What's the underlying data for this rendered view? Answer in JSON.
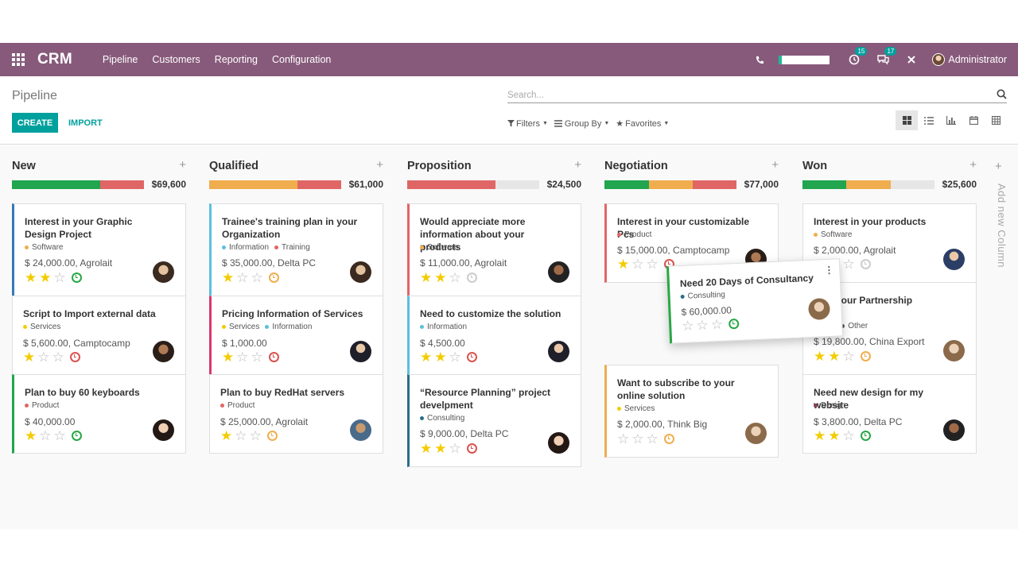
{
  "navbar": {
    "brand": "CRM",
    "menu": [
      "Pipeline",
      "Customers",
      "Reporting",
      "Configuration"
    ],
    "badge_activities": "15",
    "badge_messages": "17",
    "user_name": "Administrator"
  },
  "control_panel": {
    "breadcrumb": "Pipeline",
    "create_label": "CREATE",
    "import_label": "IMPORT",
    "search_placeholder": "Search...",
    "filters_label": "Filters",
    "group_by_label": "Group By",
    "favorites_label": "Favorites"
  },
  "colors": {
    "brand": "#875a7b",
    "accent": "#00a09d",
    "green": "#21a54f",
    "red": "#e06666",
    "orange": "#f0ad4e",
    "blue": "#5bc0de"
  },
  "columns": [
    {
      "title": "New",
      "total": "$69,600",
      "progress": {
        "green": 0.67,
        "orange": 0,
        "red": 0.33
      }
    },
    {
      "title": "Qualified",
      "total": "$61,000",
      "progress": {
        "green": 0,
        "orange": 0.67,
        "red": 0.33
      }
    },
    {
      "title": "Proposition",
      "total": "$24,500",
      "progress": {
        "green": 0,
        "orange": 0,
        "red": 0.67
      }
    },
    {
      "title": "Negotiation",
      "total": "$77,000",
      "progress": {
        "green": 0.34,
        "orange": 0.33,
        "red": 0.33
      }
    },
    {
      "title": "Won",
      "total": "$25,600",
      "progress": {
        "green": 0.33,
        "orange": 0.34,
        "red": 0
      }
    }
  ],
  "cards": {
    "new": [
      {
        "title": "Interest in your Graphic Design Project",
        "tags": [
          "Software"
        ],
        "amount": "$ 24,000.00, Agrolait",
        "stars": 2,
        "activity": "green"
      },
      {
        "title": "Script to Import external data",
        "tags": [
          "Services"
        ],
        "amount": "$ 5,600.00, Camptocamp",
        "stars": 1,
        "activity": "red"
      },
      {
        "title": "Plan to buy 60 keyboards",
        "tags": [
          "Product"
        ],
        "amount": "$ 40,000.00",
        "stars": 1,
        "activity": "green"
      }
    ],
    "qualified": [
      {
        "title": "Trainee's training plan in your Organization",
        "tags": [
          "Information",
          "Training"
        ],
        "amount": "$ 35,000.00, Delta PC",
        "stars": 1,
        "activity": "orange"
      },
      {
        "title": "Pricing Information of Services",
        "tags": [
          "Services",
          "Information"
        ],
        "amount": "$ 1,000.00",
        "stars": 1,
        "activity": "red"
      },
      {
        "title": "Plan to buy RedHat servers",
        "tags": [
          "Product"
        ],
        "amount": "$ 25,000.00, Agrolait",
        "stars": 1,
        "activity": "orange"
      }
    ],
    "proposition": [
      {
        "title": "Would appreciate more information about your products",
        "tags": [
          "Software"
        ],
        "amount": "$ 11,000.00, Agrolait",
        "stars": 2,
        "activity": "grey"
      },
      {
        "title": "Need to customize the solution",
        "tags": [
          "Information"
        ],
        "amount": "$ 4,500.00",
        "stars": 2,
        "activity": "red"
      },
      {
        "title": "“Resource Planning” project develpment",
        "tags": [
          "Consulting"
        ],
        "amount": "$ 9,000.00, Delta PC",
        "stars": 2,
        "activity": "red"
      }
    ],
    "negotiation": [
      {
        "title": "Interest in your customizable Pcs",
        "tags": [
          "Product"
        ],
        "amount": "$ 15,000.00, Camptocamp",
        "stars": 1,
        "activity": "red"
      },
      {
        "title": "Want to subscribe to your online solution",
        "tags": [
          "Services"
        ],
        "amount": "$ 2,000.00, Think Big",
        "stars": 0,
        "activity": "orange"
      }
    ],
    "won": [
      {
        "title": "Interest in your products",
        "tags": [
          "Software"
        ],
        "amount": "$ 2,000.00, Agrolait",
        "stars": 1,
        "activity": "grey"
      },
      {
        "title": "st in your Partnership",
        "title2": "ct",
        "tags": [
          "nation",
          "Other"
        ],
        "amount": "$ 19,800.00, China Export",
        "stars": 2,
        "activity": "orange"
      },
      {
        "title": "Need new design for my website",
        "tags": [
          "Design"
        ],
        "amount": "$ 3,800.00, Delta PC",
        "stars": 2,
        "activity": "green"
      }
    ]
  },
  "dragged_card": {
    "title": "Need 20 Days of Consultancy",
    "tag": "Consulting",
    "amount": "$ 60,000.00",
    "stars": 0,
    "activity": "green"
  },
  "add_column_label": "Add new Column"
}
